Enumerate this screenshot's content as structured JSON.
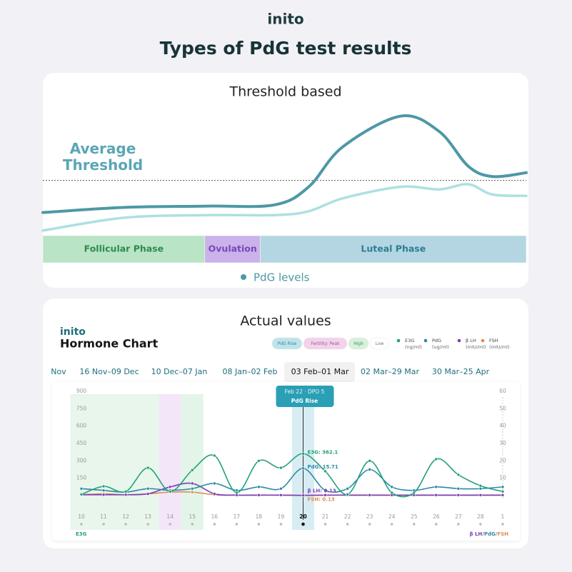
{
  "header": {
    "logo": "inito",
    "title": "Types of PdG test results"
  },
  "chart_data": [
    {
      "type": "line",
      "title": "Threshold based",
      "annotation": "Average Threshold",
      "threshold": 4.3,
      "x": [
        0,
        17,
        34,
        48,
        55,
        62,
        74,
        82,
        88,
        93,
        100
      ],
      "xlim": [
        0,
        100
      ],
      "ylim": [
        0,
        10
      ],
      "series": [
        {
          "name": "PdG levels",
          "color": "#4e98a5",
          "values": [
            1.8,
            2.2,
            2.3,
            2.4,
            3.8,
            6.9,
            9.3,
            8.1,
            5.4,
            4.6,
            4.9
          ]
        },
        {
          "color": "#aee0e2",
          "values": [
            0.4,
            1.4,
            1.6,
            1.6,
            1.9,
            2.9,
            3.8,
            3.6,
            4.0,
            3.2,
            3.1
          ]
        }
      ],
      "phases": [
        {
          "label": "Follicular Phase",
          "start": 0,
          "end": 33.5,
          "color": "#b9e4c6",
          "text_color": "#2f8a4e"
        },
        {
          "label": "Ovulation",
          "start": 33.5,
          "end": 45,
          "color": "#c9b3ea",
          "text_color": "#7a45b8"
        },
        {
          "label": "Luteal Phase",
          "start": 45,
          "end": 100,
          "color": "#b4d6e2",
          "text_color": "#2e7d93"
        }
      ]
    },
    {
      "type": "line",
      "brand": "inito",
      "title": "Actual values",
      "subtitle": "Hormone Chart",
      "badges": [
        {
          "label": "PdG Rise",
          "color": "#bfe3ea",
          "text_color": "#2c8aa0"
        },
        {
          "label": "Fertility: Peak",
          "color": "#f3d2ec",
          "text_color": "#9a5a8c"
        },
        {
          "label": "High",
          "color": "#d7f1dd",
          "text_color": "#3f8f56"
        },
        {
          "label": "Low",
          "color": "#ffffff",
          "text_color": "#777777"
        }
      ],
      "tabs": [
        "Nov",
        "16 Nov–09 Dec",
        "10 Dec–07 Jan",
        "08 Jan–02 Feb",
        "03 Feb–01 Mar",
        "02 Mar–29 Mar",
        "30 Mar–25 Apr"
      ],
      "active_tab": 4,
      "categories": [
        "10",
        "11",
        "12",
        "13",
        "14",
        "15",
        "16",
        "17",
        "18",
        "19",
        "20",
        "21",
        "22",
        "23",
        "24",
        "25",
        "26",
        "27",
        "28",
        "1"
      ],
      "ylim": [
        0,
        900
      ],
      "yticks": [
        150,
        300,
        450,
        600,
        750,
        900
      ],
      "y2lim": [
        0,
        60
      ],
      "y2ticks": [
        10,
        20,
        30,
        40,
        50,
        60
      ],
      "bands": [
        {
          "from": 0,
          "to": 3,
          "color": "#e8f6ec"
        },
        {
          "from": 4,
          "to": 4,
          "color": "#f2e6f8"
        },
        {
          "from": 5,
          "to": 5,
          "color": "#e3f5e8"
        },
        {
          "from": 10,
          "to": 10,
          "color": "#d8edf3"
        }
      ],
      "tooltip": {
        "index": 10,
        "date": "Feb 22 · DPO 5",
        "label": "PdG Rise"
      },
      "series": [
        {
          "name": "E3G",
          "unit": "(ng/ml)",
          "color": "#23a079",
          "callout": "E3G: 362.1",
          "values": [
            10,
            80,
            35,
            240,
            35,
            220,
            345,
            25,
            300,
            240,
            362.1,
            210,
            10,
            300,
            25,
            25,
            315,
            180,
            85,
            35
          ]
        },
        {
          "name": "PdG",
          "unit": "(ug/ml)",
          "color": "#2a8aa6",
          "axis": "y2",
          "callout": "PdG: 15.71",
          "values": [
            4,
            3,
            2,
            4,
            3,
            4,
            7,
            3,
            5,
            4,
            15.71,
            3,
            4,
            15,
            5,
            3,
            5,
            4,
            4,
            5
          ]
        },
        {
          "name": "β LH",
          "unit": "(mIU/ml)",
          "color": "#7b3fb5",
          "axis": "y2",
          "callout": "β LH: 0.13",
          "values": [
            0.5,
            0.5,
            0.5,
            1,
            5,
            7,
            1,
            0.3,
            0.3,
            0.3,
            0.13,
            0.3,
            0.3,
            0.3,
            0.3,
            0.3,
            0.3,
            0.3,
            0.3,
            0.3
          ]
        },
        {
          "name": "FSH",
          "unit": "(mIU/ml)",
          "color": "#e08a4e",
          "axis": "y2",
          "callout": "FSH: 0.13",
          "values": [
            0.5,
            1,
            0.5,
            1,
            2,
            2,
            0.5,
            0.2,
            0.2,
            0.2,
            0.13,
            0.2,
            0.2,
            0.2,
            0.2,
            0.2,
            0.2,
            0.2,
            0.2,
            0.2
          ]
        }
      ],
      "axis_note_left": "E3G",
      "axis_note_right": [
        "β LH",
        "/",
        "PdG",
        "/",
        "FSH"
      ]
    }
  ]
}
